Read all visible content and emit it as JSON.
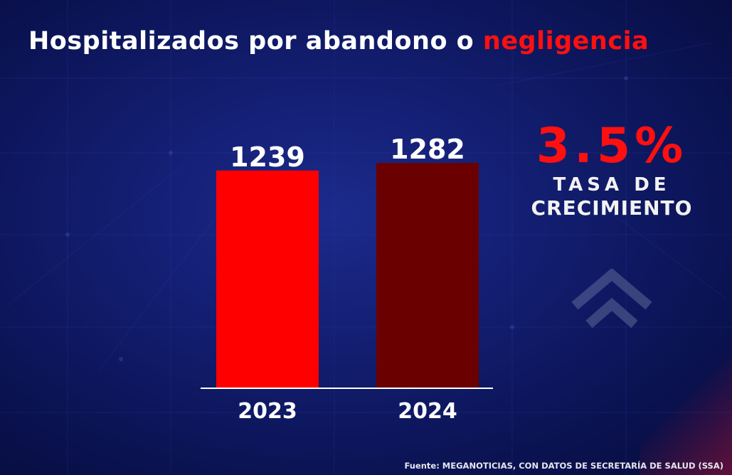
{
  "title": {
    "text": "Hospitalizados por abandono o",
    "accent": "negligencia"
  },
  "growth": {
    "value": "3.5%",
    "label_line1": "TASA DE",
    "label_line2": "CRECIMIENTO"
  },
  "source": "Fuente: MEGANOTICIAS, CON DATOS DE SECRETARÍA DE SALUD (SSA)",
  "colors": {
    "bar_2023": "#ff0000",
    "bar_2024": "#6a0000",
    "accent": "#ff1010",
    "background": "#121d6e"
  },
  "icons": [
    "chevron-up-double-icon"
  ],
  "chart_data": {
    "type": "bar",
    "categories": [
      "2023",
      "2024"
    ],
    "values": [
      1239,
      1282
    ],
    "data_labels": [
      "1239",
      "1282"
    ],
    "title": "Hospitalizados por abandono o negligencia",
    "xlabel": "",
    "ylabel": "",
    "ylim": [
      0,
      1400
    ],
    "grid": false,
    "legend": "none"
  }
}
